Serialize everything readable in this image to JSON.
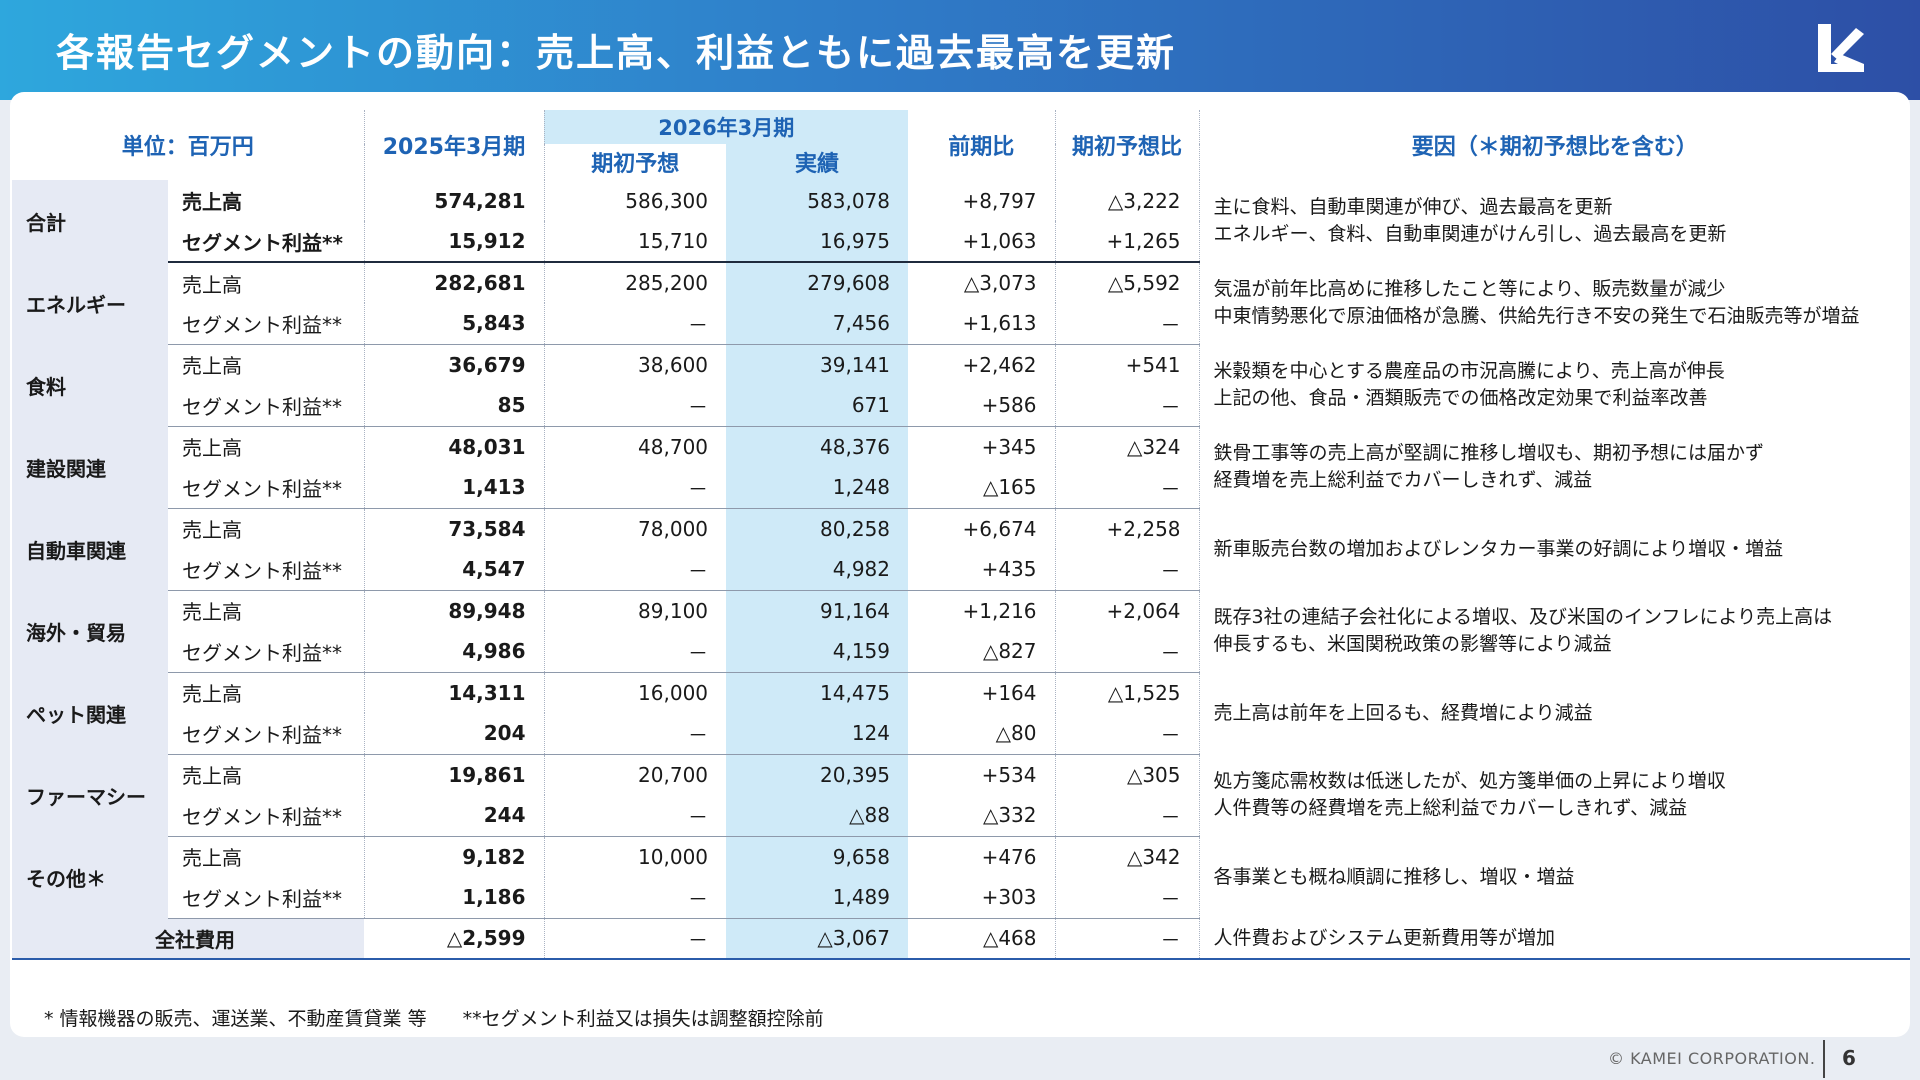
{
  "title": "各報告セグメントの動向：売上高、利益ともに過去最高を更新",
  "header": {
    "unit": "単位：百万円",
    "fy2025": "2025年3月期",
    "fy2026": "2026年3月期",
    "forecast": "期初予想",
    "actual": "実績",
    "yoy": "前期比",
    "vs_forecast": "期初予想比",
    "factors": "要因（＊期初予想比を含む）"
  },
  "segments": [
    {
      "name": "合計",
      "rows": [
        {
          "item": "売上高",
          "fy2025": "574,281",
          "forecast": "586,300",
          "actual": "583,078",
          "yoy": "+8,797",
          "vs": "△3,222"
        },
        {
          "item": "セグメント利益**",
          "fy2025": "15,912",
          "forecast": "15,710",
          "actual": "16,975",
          "yoy": "+1,063",
          "vs": "+1,265"
        }
      ],
      "factors": [
        "主に食料、自動車関連が伸び、過去最高を更新",
        "エネルギー、食料、自動車関連がけん引し、過去最高を更新"
      ]
    },
    {
      "name": "エネルギー",
      "rows": [
        {
          "item": "売上高",
          "fy2025": "282,681",
          "forecast": "285,200",
          "actual": "279,608",
          "yoy": "△3,073",
          "vs": "△5,592"
        },
        {
          "item": "セグメント利益**",
          "fy2025": "5,843",
          "forecast": "－",
          "actual": "7,456",
          "yoy": "+1,613",
          "vs": "－"
        }
      ],
      "factors": [
        "気温が前年比高めに推移したこと等により、販売数量が減少",
        "中東情勢悪化で原油価格が急騰、供給先行き不安の発生で石油販売等が増益"
      ]
    },
    {
      "name": "食料",
      "rows": [
        {
          "item": "売上高",
          "fy2025": "36,679",
          "forecast": "38,600",
          "actual": "39,141",
          "yoy": "+2,462",
          "vs": "+541"
        },
        {
          "item": "セグメント利益**",
          "fy2025": "85",
          "forecast": "－",
          "actual": "671",
          "yoy": "+586",
          "vs": "－"
        }
      ],
      "factors": [
        "米穀類を中心とする農産品の市況高騰により、売上高が伸長",
        "上記の他、食品・酒類販売での価格改定効果で利益率改善"
      ]
    },
    {
      "name": "建設関連",
      "rows": [
        {
          "item": "売上高",
          "fy2025": "48,031",
          "forecast": "48,700",
          "actual": "48,376",
          "yoy": "+345",
          "vs": "△324"
        },
        {
          "item": "セグメント利益**",
          "fy2025": "1,413",
          "forecast": "－",
          "actual": "1,248",
          "yoy": "△165",
          "vs": "－"
        }
      ],
      "factors": [
        "鉄骨工事等の売上高が堅調に推移し増収も、期初予想には届かず",
        "経費増を売上総利益でカバーしきれず、減益"
      ]
    },
    {
      "name": "自動車関連",
      "rows": [
        {
          "item": "売上高",
          "fy2025": "73,584",
          "forecast": "78,000",
          "actual": "80,258",
          "yoy": "+6,674",
          "vs": "+2,258"
        },
        {
          "item": "セグメント利益**",
          "fy2025": "4,547",
          "forecast": "－",
          "actual": "4,982",
          "yoy": "+435",
          "vs": "－"
        }
      ],
      "factors": [
        "新車販売台数の増加およびレンタカー事業の好調により増収・増益"
      ]
    },
    {
      "name": "海外・貿易",
      "rows": [
        {
          "item": "売上高",
          "fy2025": "89,948",
          "forecast": "89,100",
          "actual": "91,164",
          "yoy": "+1,216",
          "vs": "+2,064"
        },
        {
          "item": "セグメント利益**",
          "fy2025": "4,986",
          "forecast": "－",
          "actual": "4,159",
          "yoy": "△827",
          "vs": "－"
        }
      ],
      "factors": [
        "既存3社の連結子会社化による増収、及び米国のインフレにより売上高は",
        "伸長するも、米国関税政策の影響等により減益"
      ]
    },
    {
      "name": "ペット関連",
      "rows": [
        {
          "item": "売上高",
          "fy2025": "14,311",
          "forecast": "16,000",
          "actual": "14,475",
          "yoy": "+164",
          "vs": "△1,525"
        },
        {
          "item": "セグメント利益**",
          "fy2025": "204",
          "forecast": "－",
          "actual": "124",
          "yoy": "△80",
          "vs": "－"
        }
      ],
      "factors": [
        "売上高は前年を上回るも、経費増により減益"
      ]
    },
    {
      "name": "ファーマシー",
      "rows": [
        {
          "item": "売上高",
          "fy2025": "19,861",
          "forecast": "20,700",
          "actual": "20,395",
          "yoy": "+534",
          "vs": "△305"
        },
        {
          "item": "セグメント利益**",
          "fy2025": "244",
          "forecast": "－",
          "actual": "△88",
          "yoy": "△332",
          "vs": "－"
        }
      ],
      "factors": [
        "処方箋応需枚数は低迷したが、処方箋単価の上昇により増収",
        "人件費等の経費増を売上総利益でカバーしきれず、減益"
      ]
    },
    {
      "name": "その他＊",
      "rows": [
        {
          "item": "売上高",
          "fy2025": "9,182",
          "forecast": "10,000",
          "actual": "9,658",
          "yoy": "+476",
          "vs": "△342"
        },
        {
          "item": "セグメント利益**",
          "fy2025": "1,186",
          "forecast": "－",
          "actual": "1,489",
          "yoy": "+303",
          "vs": "－"
        }
      ],
      "factors": [
        "各事業とも概ね順調に推移し、増収・増益"
      ]
    }
  ],
  "corporate": {
    "name": "全社費用",
    "fy2025": "△2,599",
    "forecast": "－",
    "actual": "△3,067",
    "yoy": "△468",
    "vs": "－",
    "factors": [
      "人件費およびシステム更新費用等が増加"
    ]
  },
  "footnotes": [
    "* 情報機器の販売、運送業、不動産賃貸業 等",
    "**セグメント利益又は損失は調整額控除前"
  ],
  "copyright": "© KAMEI CORPORATION.",
  "page_number": "6",
  "colors": {
    "header_accent": "#1e63b4",
    "actual_bg": "#cfeaf8",
    "segment_bg": "#e6eaf4"
  },
  "logo": "kamei-logo-icon"
}
